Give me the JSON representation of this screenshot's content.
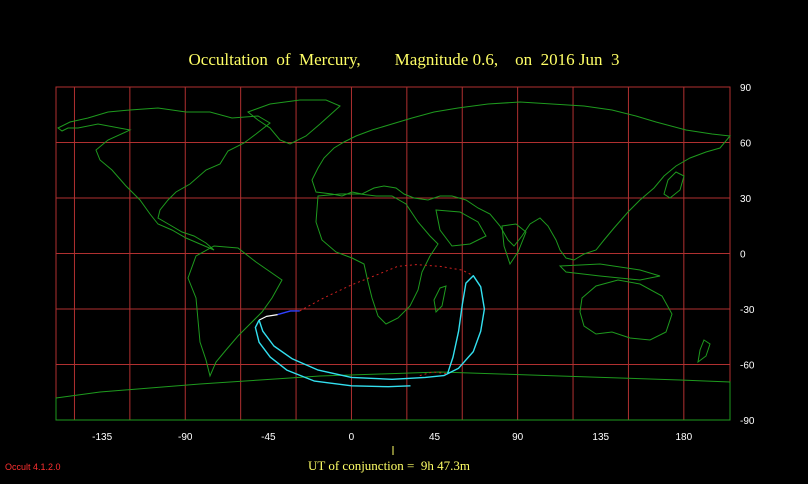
{
  "title": "Occultation  of  Mercury,        Magnitude 0.6,    on  2016 Jun  3",
  "longitude_ticks": [
    "-135",
    "-90",
    "-45",
    "0",
    "45",
    "90",
    "135",
    "180"
  ],
  "latitude_ticks": [
    "90",
    "60",
    "30",
    "0",
    "-30",
    "-60",
    "-90"
  ],
  "ut_label": "UT of conjunction =  9h 47.3m",
  "version_label": "Occult 4.1.2.0",
  "colors": {
    "background": "#000000",
    "grid": "#b03030",
    "coastline": "#1e9a1e",
    "path_visible": "#33e0f0",
    "path_twilight": "#ffffff",
    "path_daylight_blue": "#3040ff",
    "path_invisible": "#d02020",
    "title": "#ffff66"
  },
  "chart_data": {
    "type": "map",
    "projection": "equirectangular",
    "lon_range": [
      -160,
      205
    ],
    "lat_range": [
      -90,
      90
    ],
    "grid": true,
    "grid_spacing_deg": 30,
    "occultation_paths": [
      {
        "name": "",
        "style": "invisible",
        "points": [
          [
            -28,
            -31
          ],
          [
            -15,
            -24
          ],
          [
            0,
            -17
          ],
          [
            15,
            -11
          ],
          [
            25,
            -7
          ],
          [
            35,
            -6
          ],
          [
            48,
            -7
          ],
          [
            60,
            -9
          ],
          [
            66,
            -12
          ]
        ]
      },
      {
        "name": "",
        "style": "daylight",
        "points": [
          [
            -40,
            -33
          ],
          [
            -33,
            -31
          ],
          [
            -28,
            -31
          ]
        ]
      },
      {
        "name": "",
        "style": "twilight",
        "points": [
          [
            -50,
            -36
          ],
          [
            -46,
            -34
          ],
          [
            -40,
            -33
          ]
        ]
      },
      {
        "name": "",
        "style": "visible",
        "points": [
          [
            -50,
            -36
          ],
          [
            -52,
            -40
          ],
          [
            -50,
            -48
          ],
          [
            -44,
            -56
          ],
          [
            -35,
            -63
          ],
          [
            -20,
            -69
          ],
          [
            0,
            -71.5
          ],
          [
            20,
            -72
          ],
          [
            32,
            -71.5
          ]
        ]
      },
      {
        "name": "",
        "style": "visible",
        "points": [
          [
            -50,
            -36
          ],
          [
            -48,
            -42
          ],
          [
            -42,
            -50
          ],
          [
            -32,
            -57
          ],
          [
            -18,
            -63
          ],
          [
            0,
            -67
          ],
          [
            22,
            -68
          ],
          [
            40,
            -67
          ],
          [
            50,
            -66
          ],
          [
            58,
            -62
          ],
          [
            66,
            -53
          ],
          [
            70,
            -42
          ],
          [
            72,
            -30
          ],
          [
            70,
            -18
          ],
          [
            66,
            -12
          ],
          [
            62,
            -16
          ],
          [
            60,
            -28
          ],
          [
            58,
            -42
          ],
          [
            55,
            -56
          ],
          [
            52,
            -65
          ]
        ]
      },
      {
        "name": "",
        "style": "invisible",
        "points": [
          [
            37,
            -66
          ],
          [
            44,
            -64
          ],
          [
            52,
            -65
          ]
        ]
      }
    ]
  }
}
